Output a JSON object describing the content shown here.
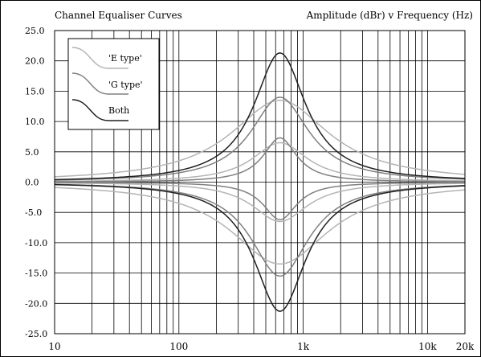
{
  "chart_data": {
    "type": "line",
    "title": "Channel Equaliser Curves",
    "subtitle": "Amplitude (dBr)  v  Frequency (Hz)",
    "x_scale": "log",
    "xlim": [
      10,
      20000
    ],
    "ylim": [
      -25,
      25
    ],
    "y_ticks": [
      "25.0",
      "20.0",
      "15.0",
      "10.0",
      "5.0",
      "0.0",
      "-5.0",
      "-10.0",
      "-15.0",
      "-20.0",
      "-25.0"
    ],
    "x_ticks": [
      {
        "value": 10,
        "label": "10"
      },
      {
        "value": 100,
        "label": "100"
      },
      {
        "value": 1000,
        "label": "1k"
      },
      {
        "value": 10000,
        "label": "10k"
      },
      {
        "value": 20000,
        "label": "20k"
      }
    ],
    "grid": true,
    "legend_position": "top-left",
    "center_frequency": 650,
    "legend": [
      {
        "label": "'E type'",
        "color": "#b4b4b4"
      },
      {
        "label": "'G type'",
        "color": "#808080"
      },
      {
        "label": "Both",
        "color": "#202020"
      }
    ],
    "series": [
      {
        "group": "E type",
        "color": "#b4b4b4",
        "peak_db": 13.5,
        "q": 1.6
      },
      {
        "group": "E type",
        "color": "#b4b4b4",
        "peak_db": 6.5,
        "q": 0.9
      },
      {
        "group": "E type",
        "color": "#b4b4b4",
        "peak_db": -6.5,
        "q": 0.9
      },
      {
        "group": "E type",
        "color": "#b4b4b4",
        "peak_db": -13.5,
        "q": 1.6
      },
      {
        "group": "G type",
        "color": "#808080",
        "peak_db": 14.0,
        "q": 0.95
      },
      {
        "group": "G type",
        "color": "#808080",
        "peak_db": 7.3,
        "q": 0.55
      },
      {
        "group": "G type",
        "color": "#808080",
        "peak_db": -6.2,
        "q": 0.55
      },
      {
        "group": "G type",
        "color": "#808080",
        "peak_db": -15.5,
        "q": 0.95
      },
      {
        "group": "Both",
        "color": "#202020",
        "peak_db": 21.3,
        "q": 0.85
      },
      {
        "group": "Both",
        "color": "#202020",
        "peak_db": -21.3,
        "q": 0.85
      }
    ]
  }
}
